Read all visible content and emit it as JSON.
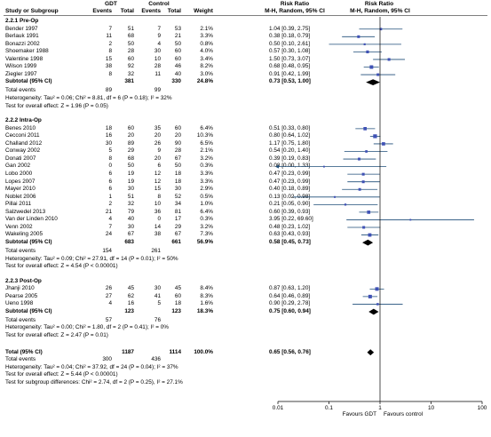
{
  "headers": {
    "study": "Study or Subgroup",
    "gdt_group": "GDT",
    "control_group": "Control",
    "events": "Events",
    "total": "Total",
    "weight": "Weight",
    "rr": "Risk Ratio",
    "rr_method": "M-H, Random, 95% CI"
  },
  "colors": {
    "ci_line": "#1f4e79",
    "square": "#3f51b5",
    "diamond": "#000000",
    "axis": "#000000"
  },
  "chart_data": {
    "type": "forest",
    "x_axis": {
      "scale": "log",
      "ticks": [
        0.01,
        0.1,
        1,
        10,
        100
      ],
      "tick_labels": [
        "0.01",
        "0.1",
        "1",
        "10",
        "100"
      ],
      "range": [
        0.01,
        100
      ]
    },
    "favours_left": "Favours GDT",
    "favours_right": "Favours control",
    "subgroups": [
      {
        "title": "2.2.1 Pre-Op",
        "studies": [
          {
            "name": "Bender 1997",
            "e1": "7",
            "n1": "51",
            "e2": "7",
            "n2": "53",
            "weight": "2.1%",
            "ci_text": "1.04 [0.39, 2.75]",
            "rr": 1.04,
            "lo": 0.39,
            "hi": 2.75
          },
          {
            "name": "Berlauk 1991",
            "e1": "11",
            "n1": "68",
            "e2": "9",
            "n2": "21",
            "weight": "3.3%",
            "ci_text": "0.38 [0.18, 0.79]",
            "rr": 0.38,
            "lo": 0.18,
            "hi": 0.79
          },
          {
            "name": "Bonazzi 2002",
            "e1": "2",
            "n1": "50",
            "e2": "4",
            "n2": "50",
            "weight": "0.8%",
            "ci_text": "0.50 [0.10, 2.61]",
            "rr": 0.5,
            "lo": 0.1,
            "hi": 2.61
          },
          {
            "name": "Shoemaker 1988",
            "e1": "8",
            "n1": "28",
            "e2": "30",
            "n2": "60",
            "weight": "4.0%",
            "ci_text": "0.57 [0.30, 1.08]",
            "rr": 0.57,
            "lo": 0.3,
            "hi": 1.08
          },
          {
            "name": "Valentine 1998",
            "e1": "15",
            "n1": "60",
            "e2": "10",
            "n2": "60",
            "weight": "3.4%",
            "ci_text": "1.50 [0.73, 3.07]",
            "rr": 1.5,
            "lo": 0.73,
            "hi": 3.07
          },
          {
            "name": "Wilson 1999",
            "e1": "38",
            "n1": "92",
            "e2": "28",
            "n2": "46",
            "weight": "8.2%",
            "ci_text": "0.68 [0.48, 0.95]",
            "rr": 0.68,
            "lo": 0.48,
            "hi": 0.95
          },
          {
            "name": "Ziegler 1997",
            "e1": "8",
            "n1": "32",
            "e2": "11",
            "n2": "40",
            "weight": "3.0%",
            "ci_text": "0.91 [0.42, 1.99]",
            "rr": 0.91,
            "lo": 0.42,
            "hi": 1.99
          }
        ],
        "subtotal": {
          "label": "Subtotal (95% CI)",
          "n1": "381",
          "n2": "330",
          "weight": "24.8%",
          "ci_text": "0.73 [0.53, 1.00]",
          "rr": 0.73,
          "lo": 0.53,
          "hi": 1.0
        },
        "total_events": {
          "label": "Total events",
          "e1": "89",
          "e2": "99"
        },
        "heterogeneity": "Heterogeneity: Tau² = 0.06; Chi² = 8.81, df = 6 (P = 0.18); I² = 32%",
        "overall": "Test for overall effect: Z = 1.96 (P = 0.05)"
      },
      {
        "title": "2.2.2 Intra-Op",
        "studies": [
          {
            "name": "Benes 2010",
            "e1": "18",
            "n1": "60",
            "e2": "35",
            "n2": "60",
            "weight": "6.4%",
            "ci_text": "0.51 [0.33, 0.80]",
            "rr": 0.51,
            "lo": 0.33,
            "hi": 0.8
          },
          {
            "name": "Cecconi 2011",
            "e1": "16",
            "n1": "20",
            "e2": "20",
            "n2": "20",
            "weight": "10.3%",
            "ci_text": "0.80 [0.64, 1.02]",
            "rr": 0.8,
            "lo": 0.64,
            "hi": 1.02
          },
          {
            "name": "Challand 2012",
            "e1": "30",
            "n1": "89",
            "e2": "26",
            "n2": "90",
            "weight": "6.5%",
            "ci_text": "1.17 [0.75, 1.80]",
            "rr": 1.17,
            "lo": 0.75,
            "hi": 1.8
          },
          {
            "name": "Conway 2002",
            "e1": "5",
            "n1": "29",
            "e2": "9",
            "n2": "28",
            "weight": "2.1%",
            "ci_text": "0.54 [0.20, 1.40]",
            "rr": 0.54,
            "lo": 0.2,
            "hi": 1.4
          },
          {
            "name": "Donati 2007",
            "e1": "8",
            "n1": "68",
            "e2": "20",
            "n2": "67",
            "weight": "3.2%",
            "ci_text": "0.39 [0.19, 0.83]",
            "rr": 0.39,
            "lo": 0.19,
            "hi": 0.83
          },
          {
            "name": "Gan 2002",
            "e1": "0",
            "n1": "50",
            "e2": "6",
            "n2": "50",
            "weight": "0.3%",
            "ci_text": "0.08 [0.00, 1.33]",
            "rr": 0.08,
            "lo": 0.004,
            "hi": 1.33
          },
          {
            "name": "Lobo 2000",
            "e1": "6",
            "n1": "19",
            "e2": "12",
            "n2": "18",
            "weight": "3.3%",
            "ci_text": "0.47 [0.23, 0.99]",
            "rr": 0.47,
            "lo": 0.23,
            "hi": 0.99
          },
          {
            "name": "Lopes 2007",
            "e1": "6",
            "n1": "19",
            "e2": "12",
            "n2": "18",
            "weight": "3.3%",
            "ci_text": "0.47 [0.23, 0.99]",
            "rr": 0.47,
            "lo": 0.23,
            "hi": 0.99
          },
          {
            "name": "Mayer 2010",
            "e1": "6",
            "n1": "30",
            "e2": "15",
            "n2": "30",
            "weight": "2.9%",
            "ci_text": "0.40 [0.18, 0.89]",
            "rr": 0.4,
            "lo": 0.18,
            "hi": 0.89
          },
          {
            "name": "Noblet 2006",
            "e1": "1",
            "n1": "51",
            "e2": "8",
            "n2": "52",
            "weight": "0.5%",
            "ci_text": "0.13 [0.02, 0.98]",
            "rr": 0.13,
            "lo": 0.02,
            "hi": 0.98
          },
          {
            "name": "Pillai 2011",
            "e1": "2",
            "n1": "32",
            "e2": "10",
            "n2": "34",
            "weight": "1.0%",
            "ci_text": "0.21 [0.05, 0.90]",
            "rr": 0.21,
            "lo": 0.05,
            "hi": 0.9
          },
          {
            "name": "Salzwedel 2013",
            "e1": "21",
            "n1": "79",
            "e2": "36",
            "n2": "81",
            "weight": "6.4%",
            "ci_text": "0.60 [0.39, 0.93]",
            "rr": 0.6,
            "lo": 0.39,
            "hi": 0.93
          },
          {
            "name": "Van der Linden 2010",
            "e1": "4",
            "n1": "40",
            "e2": "0",
            "n2": "17",
            "weight": "0.3%",
            "ci_text": "3.95 [0.22, 69.60]",
            "rr": 3.95,
            "lo": 0.22,
            "hi": 69.6
          },
          {
            "name": "Venn 2002",
            "e1": "7",
            "n1": "30",
            "e2": "14",
            "n2": "29",
            "weight": "3.2%",
            "ci_text": "0.48 [0.23, 1.02]",
            "rr": 0.48,
            "lo": 0.23,
            "hi": 1.02
          },
          {
            "name": "Wakeling 2005",
            "e1": "24",
            "n1": "67",
            "e2": "38",
            "n2": "67",
            "weight": "7.3%",
            "ci_text": "0.63 [0.43, 0.93]",
            "rr": 0.63,
            "lo": 0.43,
            "hi": 0.93
          }
        ],
        "subtotal": {
          "label": "Subtotal (95% CI)",
          "n1": "683",
          "n2": "661",
          "weight": "56.9%",
          "ci_text": "0.58 [0.45, 0.73]",
          "rr": 0.58,
          "lo": 0.45,
          "hi": 0.73
        },
        "total_events": {
          "label": "Total events",
          "e1": "154",
          "e2": "261"
        },
        "heterogeneity": "Heterogeneity: Tau² = 0.09; Chi² = 27.91, df = 14 (P = 0.01); I² = 50%",
        "overall": "Test for overall effect: Z = 4.54 (P < 0.00001)"
      },
      {
        "title": "2.2.3 Post-Op",
        "studies": [
          {
            "name": "Jhanji 2010",
            "e1": "26",
            "n1": "45",
            "e2": "30",
            "n2": "45",
            "weight": "8.4%",
            "ci_text": "0.87 [0.63, 1.20]",
            "rr": 0.87,
            "lo": 0.63,
            "hi": 1.2
          },
          {
            "name": "Pearse 2005",
            "e1": "27",
            "n1": "62",
            "e2": "41",
            "n2": "60",
            "weight": "8.3%",
            "ci_text": "0.64 [0.46, 0.89]",
            "rr": 0.64,
            "lo": 0.46,
            "hi": 0.89
          },
          {
            "name": "Ueno 1998",
            "e1": "4",
            "n1": "16",
            "e2": "5",
            "n2": "18",
            "weight": "1.6%",
            "ci_text": "0.90 [0.29, 2.78]",
            "rr": 0.9,
            "lo": 0.29,
            "hi": 2.78
          }
        ],
        "subtotal": {
          "label": "Subtotal (95% CI)",
          "n1": "123",
          "n2": "123",
          "weight": "18.3%",
          "ci_text": "0.75 [0.60, 0.94]",
          "rr": 0.75,
          "lo": 0.6,
          "hi": 0.94
        },
        "total_events": {
          "label": "Total events",
          "e1": "57",
          "e2": "76"
        },
        "heterogeneity": "Heterogeneity: Tau² = 0.00; Chi² = 1.80, df = 2 (P = 0.41); I² = 0%",
        "overall": "Test for overall effect: Z = 2.47 (P = 0.01)"
      }
    ],
    "total": {
      "label": "Total (95% CI)",
      "n1": "1187",
      "n2": "1114",
      "weight": "100.0%",
      "ci_text": "0.65 [0.56, 0.76]",
      "rr": 0.65,
      "lo": 0.56,
      "hi": 0.76
    },
    "total_events": {
      "label": "Total events",
      "e1": "300",
      "e2": "436"
    },
    "heterogeneity": "Heterogeneity: Tau² = 0.04; Chi² = 37.92, df = 24 (P = 0.04); I² = 37%",
    "overall": "Test for overall effect: Z = 5.44 (P < 0.00001)",
    "subgroup_diff": "Test for subgroup differences: Chi² = 2.74, df = 2 (P = 0.25), I² = 27.1%"
  }
}
